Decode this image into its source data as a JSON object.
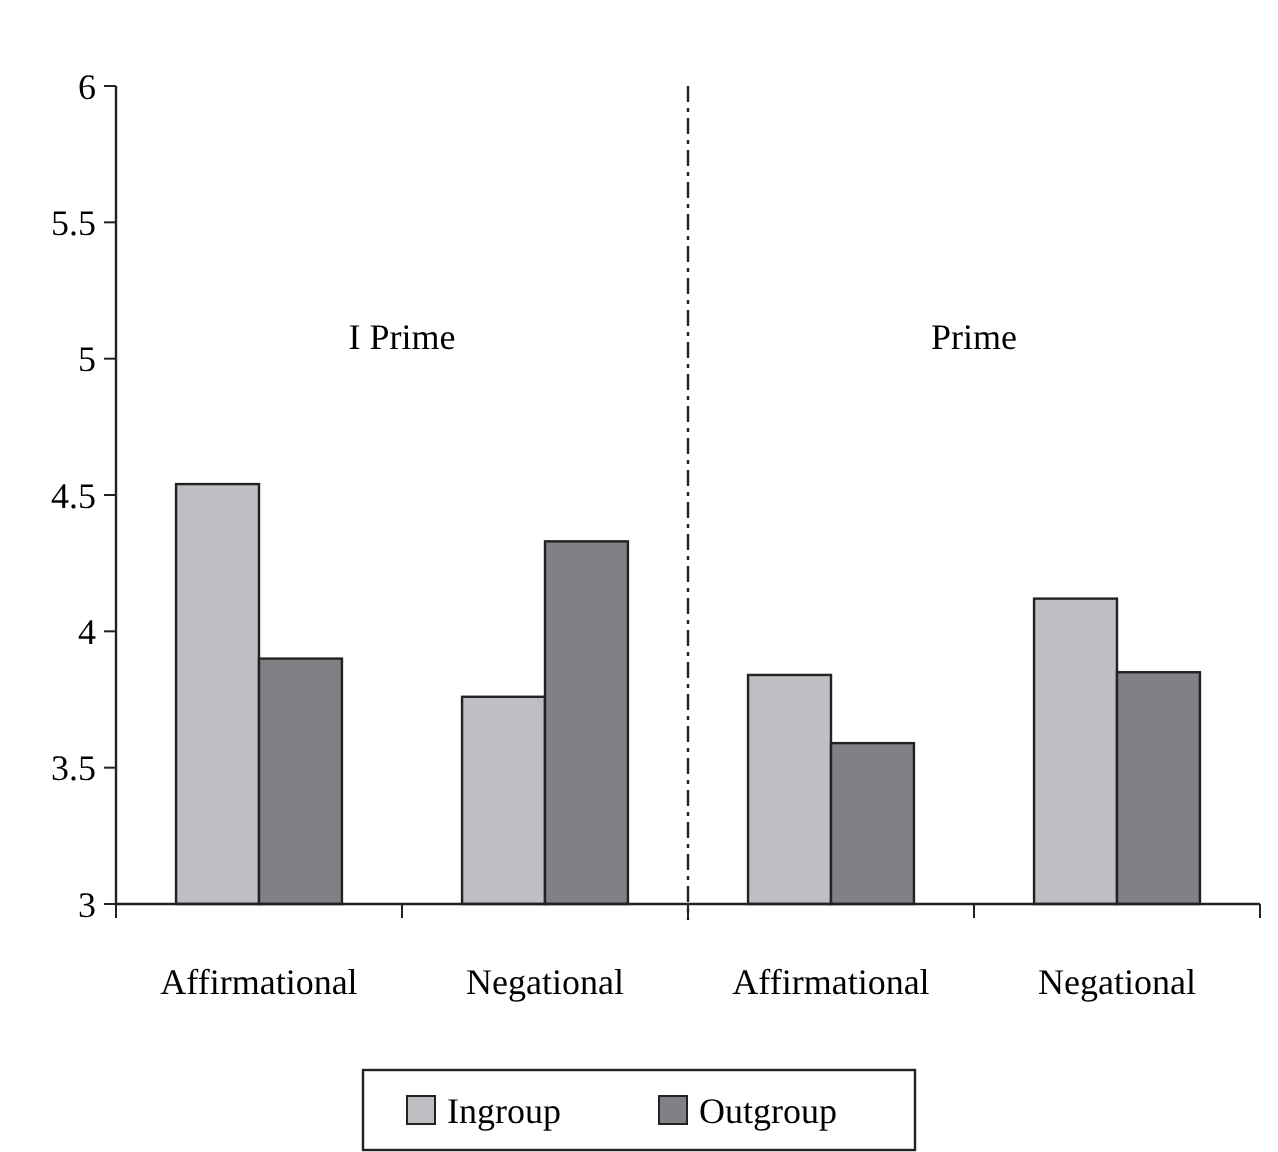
{
  "chart_data": {
    "type": "bar",
    "categories": [
      "Affirmational",
      "Negational",
      "Affirmational",
      "Negational"
    ],
    "series": [
      {
        "name": "Ingroup",
        "color": "#bebfc3",
        "values": [
          4.54,
          3.76,
          3.84,
          4.12
        ]
      },
      {
        "name": "Outgroup",
        "color": "#808185",
        "values": [
          3.9,
          4.33,
          3.59,
          3.85
        ]
      }
    ],
    "ylim": [
      3,
      6
    ],
    "yticks": [
      3,
      3.5,
      4,
      4.5,
      5,
      5.5,
      6
    ],
    "annotations": [
      "I Prime",
      "Prime"
    ],
    "legend": "bottom",
    "grid": false
  }
}
